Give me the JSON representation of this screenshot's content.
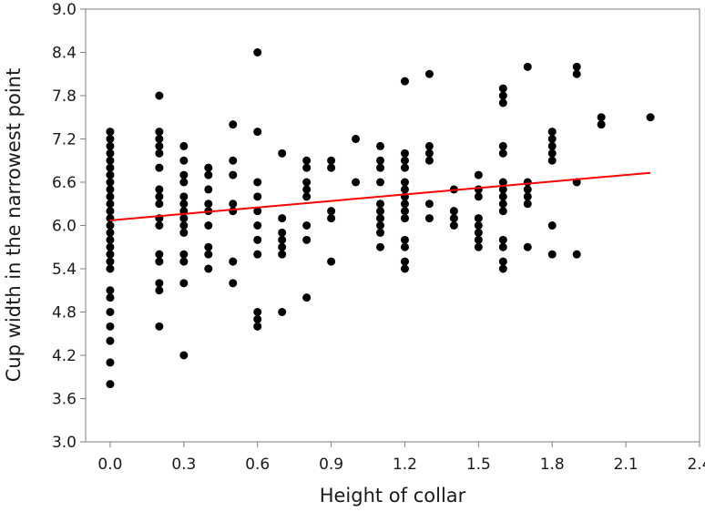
{
  "chart_data": {
    "type": "scatter",
    "xlabel": "Height of collar",
    "ylabel": "Cup width in the narrowest point",
    "xlim": [
      -0.1,
      2.4
    ],
    "ylim": [
      3.0,
      9.0
    ],
    "xticks": [
      0.0,
      0.3,
      0.6,
      0.9,
      1.2,
      1.5,
      1.8,
      2.1,
      2.4
    ],
    "yticks": [
      3.0,
      3.6,
      4.2,
      4.8,
      5.4,
      6.0,
      6.6,
      7.2,
      7.8,
      8.4,
      9.0
    ],
    "xtick_labels": [
      "0.0",
      "0.3",
      "0.6",
      "0.9",
      "1.2",
      "1.5",
      "1.8",
      "2.1",
      "2.4"
    ],
    "ytick_labels": [
      "3.0",
      "3.6",
      "4.2",
      "4.8",
      "5.4",
      "6.0",
      "6.6",
      "7.2",
      "7.8",
      "8.4",
      "9.0"
    ],
    "grid": false,
    "point_color": "#000000",
    "fit_line_color": "#ff0000",
    "fit_line": {
      "x": [
        0.0,
        2.2
      ],
      "y": [
        6.07,
        6.73
      ]
    },
    "points": [
      [
        0.0,
        3.8
      ],
      [
        0.0,
        4.1
      ],
      [
        0.0,
        4.4
      ],
      [
        0.0,
        4.6
      ],
      [
        0.0,
        4.8
      ],
      [
        0.0,
        5.0
      ],
      [
        0.0,
        5.1
      ],
      [
        0.0,
        5.4
      ],
      [
        0.0,
        5.5
      ],
      [
        0.0,
        5.6
      ],
      [
        0.0,
        5.7
      ],
      [
        0.0,
        5.8
      ],
      [
        0.0,
        5.9
      ],
      [
        0.0,
        6.0
      ],
      [
        0.0,
        6.1
      ],
      [
        0.0,
        6.2
      ],
      [
        0.0,
        6.3
      ],
      [
        0.0,
        6.4
      ],
      [
        0.0,
        6.5
      ],
      [
        0.0,
        6.6
      ],
      [
        0.0,
        6.7
      ],
      [
        0.0,
        6.8
      ],
      [
        0.0,
        6.9
      ],
      [
        0.0,
        7.0
      ],
      [
        0.0,
        7.1
      ],
      [
        0.0,
        7.2
      ],
      [
        0.0,
        7.3
      ],
      [
        0.2,
        4.6
      ],
      [
        0.2,
        5.1
      ],
      [
        0.2,
        5.2
      ],
      [
        0.2,
        5.5
      ],
      [
        0.2,
        5.6
      ],
      [
        0.2,
        6.0
      ],
      [
        0.2,
        6.1
      ],
      [
        0.2,
        6.3
      ],
      [
        0.2,
        6.4
      ],
      [
        0.2,
        6.5
      ],
      [
        0.2,
        6.8
      ],
      [
        0.2,
        7.0
      ],
      [
        0.2,
        7.1
      ],
      [
        0.2,
        7.2
      ],
      [
        0.2,
        7.3
      ],
      [
        0.2,
        7.8
      ],
      [
        0.3,
        4.2
      ],
      [
        0.3,
        5.2
      ],
      [
        0.3,
        5.5
      ],
      [
        0.3,
        5.6
      ],
      [
        0.3,
        5.9
      ],
      [
        0.3,
        6.0
      ],
      [
        0.3,
        6.1
      ],
      [
        0.3,
        6.2
      ],
      [
        0.3,
        6.3
      ],
      [
        0.3,
        6.4
      ],
      [
        0.3,
        6.6
      ],
      [
        0.3,
        6.7
      ],
      [
        0.3,
        6.9
      ],
      [
        0.3,
        7.1
      ],
      [
        0.4,
        5.4
      ],
      [
        0.4,
        5.6
      ],
      [
        0.4,
        5.7
      ],
      [
        0.4,
        6.0
      ],
      [
        0.4,
        6.2
      ],
      [
        0.4,
        6.3
      ],
      [
        0.4,
        6.5
      ],
      [
        0.4,
        6.7
      ],
      [
        0.4,
        6.8
      ],
      [
        0.5,
        5.2
      ],
      [
        0.5,
        5.5
      ],
      [
        0.5,
        6.2
      ],
      [
        0.5,
        6.3
      ],
      [
        0.5,
        6.7
      ],
      [
        0.5,
        6.9
      ],
      [
        0.5,
        7.4
      ],
      [
        0.6,
        4.6
      ],
      [
        0.6,
        4.7
      ],
      [
        0.6,
        4.8
      ],
      [
        0.6,
        5.6
      ],
      [
        0.6,
        5.8
      ],
      [
        0.6,
        6.0
      ],
      [
        0.6,
        6.2
      ],
      [
        0.6,
        6.4
      ],
      [
        0.6,
        6.6
      ],
      [
        0.6,
        7.3
      ],
      [
        0.6,
        8.4
      ],
      [
        0.7,
        4.8
      ],
      [
        0.7,
        5.6
      ],
      [
        0.7,
        5.7
      ],
      [
        0.7,
        5.8
      ],
      [
        0.7,
        5.9
      ],
      [
        0.7,
        6.1
      ],
      [
        0.7,
        7.0
      ],
      [
        0.8,
        5.0
      ],
      [
        0.8,
        5.8
      ],
      [
        0.8,
        6.0
      ],
      [
        0.8,
        6.4
      ],
      [
        0.8,
        6.5
      ],
      [
        0.8,
        6.6
      ],
      [
        0.8,
        6.8
      ],
      [
        0.8,
        6.9
      ],
      [
        0.9,
        5.5
      ],
      [
        0.9,
        6.1
      ],
      [
        0.9,
        6.2
      ],
      [
        0.9,
        6.8
      ],
      [
        0.9,
        6.9
      ],
      [
        1.0,
        6.6
      ],
      [
        1.0,
        7.2
      ],
      [
        1.1,
        5.7
      ],
      [
        1.1,
        5.9
      ],
      [
        1.1,
        6.0
      ],
      [
        1.1,
        6.1
      ],
      [
        1.1,
        6.2
      ],
      [
        1.1,
        6.3
      ],
      [
        1.1,
        6.6
      ],
      [
        1.1,
        6.8
      ],
      [
        1.1,
        6.9
      ],
      [
        1.1,
        7.1
      ],
      [
        1.2,
        5.4
      ],
      [
        1.2,
        5.5
      ],
      [
        1.2,
        5.7
      ],
      [
        1.2,
        5.8
      ],
      [
        1.2,
        6.1
      ],
      [
        1.2,
        6.2
      ],
      [
        1.2,
        6.3
      ],
      [
        1.2,
        6.4
      ],
      [
        1.2,
        6.5
      ],
      [
        1.2,
        6.6
      ],
      [
        1.2,
        6.8
      ],
      [
        1.2,
        6.9
      ],
      [
        1.2,
        7.0
      ],
      [
        1.2,
        8.0
      ],
      [
        1.3,
        6.1
      ],
      [
        1.3,
        6.3
      ],
      [
        1.3,
        6.9
      ],
      [
        1.3,
        7.0
      ],
      [
        1.3,
        7.1
      ],
      [
        1.3,
        8.1
      ],
      [
        1.4,
        6.0
      ],
      [
        1.4,
        6.1
      ],
      [
        1.4,
        6.2
      ],
      [
        1.4,
        6.5
      ],
      [
        1.5,
        5.7
      ],
      [
        1.5,
        5.8
      ],
      [
        1.5,
        5.9
      ],
      [
        1.5,
        6.0
      ],
      [
        1.5,
        6.1
      ],
      [
        1.5,
        6.4
      ],
      [
        1.5,
        6.5
      ],
      [
        1.5,
        6.7
      ],
      [
        1.6,
        5.4
      ],
      [
        1.6,
        5.5
      ],
      [
        1.6,
        5.7
      ],
      [
        1.6,
        5.8
      ],
      [
        1.6,
        6.2
      ],
      [
        1.6,
        6.3
      ],
      [
        1.6,
        6.4
      ],
      [
        1.6,
        6.5
      ],
      [
        1.6,
        6.6
      ],
      [
        1.6,
        7.0
      ],
      [
        1.6,
        7.1
      ],
      [
        1.6,
        7.7
      ],
      [
        1.6,
        7.8
      ],
      [
        1.6,
        7.9
      ],
      [
        1.7,
        5.7
      ],
      [
        1.7,
        6.3
      ],
      [
        1.7,
        6.4
      ],
      [
        1.7,
        6.5
      ],
      [
        1.7,
        6.6
      ],
      [
        1.7,
        8.2
      ],
      [
        1.8,
        5.6
      ],
      [
        1.8,
        6.0
      ],
      [
        1.8,
        6.9
      ],
      [
        1.8,
        7.0
      ],
      [
        1.8,
        7.1
      ],
      [
        1.8,
        7.2
      ],
      [
        1.8,
        7.3
      ],
      [
        1.9,
        5.6
      ],
      [
        1.9,
        6.6
      ],
      [
        1.9,
        8.1
      ],
      [
        1.9,
        8.2
      ],
      [
        2.0,
        7.4
      ],
      [
        2.0,
        7.5
      ],
      [
        2.2,
        7.5
      ]
    ]
  }
}
